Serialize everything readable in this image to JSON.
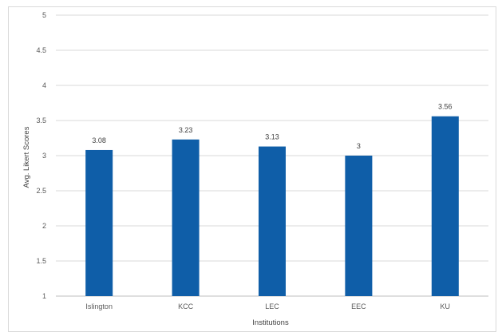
{
  "chart_data": {
    "type": "bar",
    "title": "",
    "xlabel": "Institutions",
    "ylabel": "Avg. Likert Scores",
    "categories": [
      "Islington",
      "KCC",
      "LEC",
      "EEC",
      "KU"
    ],
    "values": [
      3.08,
      3.23,
      3.13,
      3,
      3.56
    ],
    "value_labels": [
      "3.08",
      "3.23",
      "3.13",
      "3",
      "3.56"
    ],
    "ylim": [
      1,
      5
    ],
    "yticks": [
      "1",
      "1.5",
      "2",
      "2.5",
      "3",
      "3.5",
      "4",
      "4.5",
      "5"
    ],
    "grid": true,
    "legend": "none",
    "colors": {
      "bar": "#0f5ea8"
    }
  }
}
